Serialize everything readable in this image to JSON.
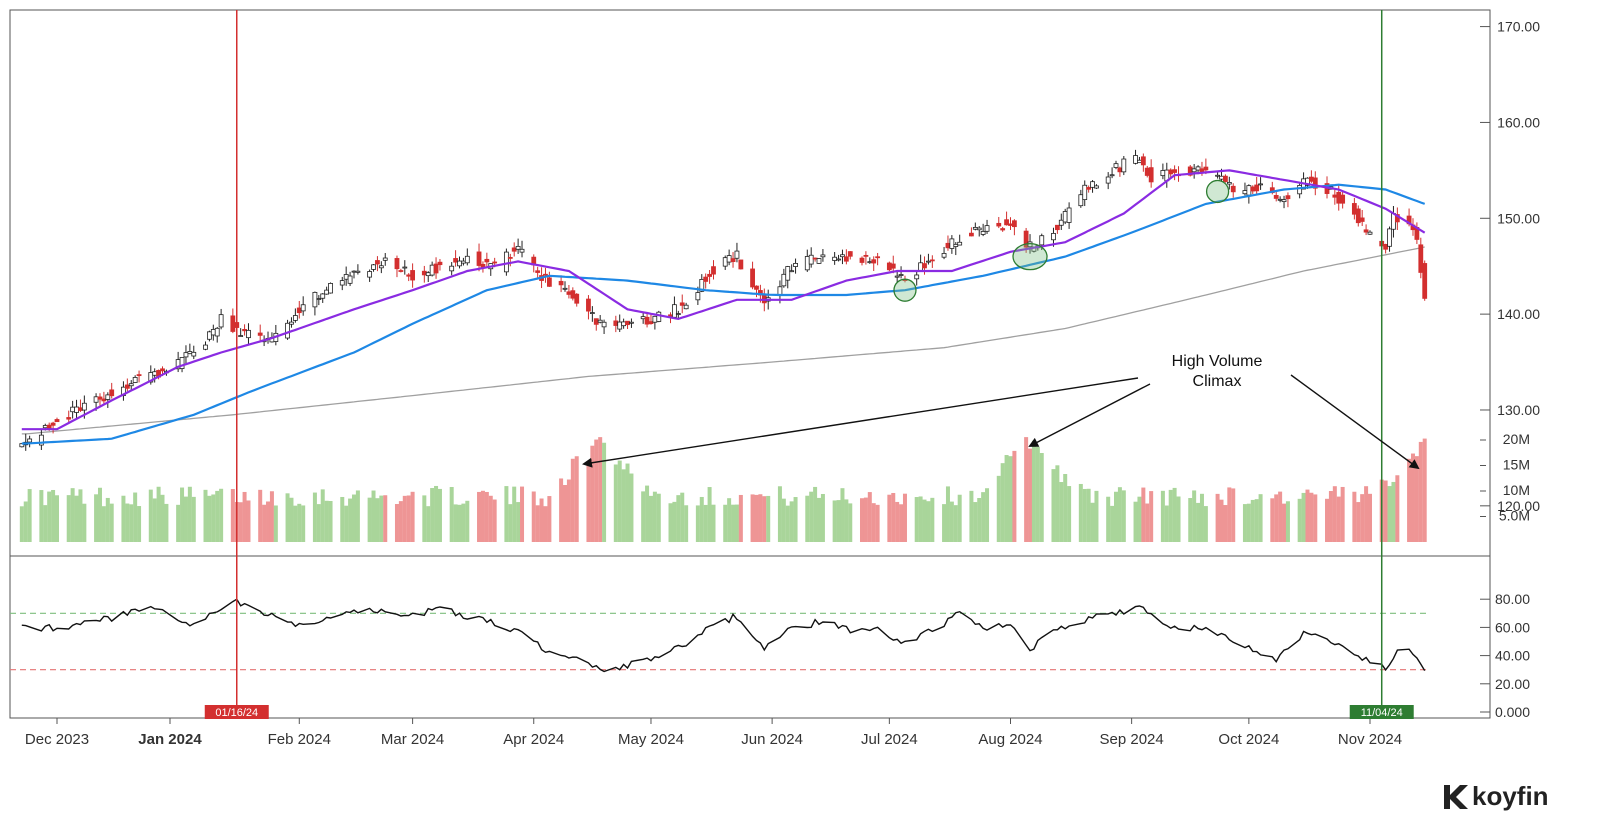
{
  "brand": {
    "name": "koyfin",
    "icon": "koyfin-k-icon"
  },
  "colors": {
    "up": "#ffffff",
    "down": "#d32f2f",
    "vol_up": "#a9d59a",
    "vol_down": "#ee9595",
    "ma_fast": "#8a2be2",
    "ma_mid": "#1e88e5",
    "ma_slow": "#a0a0a0",
    "rsi": "#111111",
    "rsi_upper": "#7fbf7f",
    "rsi_lower": "#e57373",
    "vline_red": "#d32f2f",
    "vline_green": "#2e7d32"
  },
  "annotation": {
    "line1": "High Volume",
    "line2": "Climax"
  },
  "markers": {
    "red_date": "01/16/24",
    "green_date": "11/04/24"
  },
  "chart_data": [
    {
      "type": "candlestick",
      "price_axis": {
        "ticks": [
          "120.00",
          "130.00",
          "140.00",
          "150.00",
          "160.00",
          "170.00"
        ],
        "range": [
          118,
          171
        ]
      },
      "x_labels": [
        "Dec 2023",
        "Jan 2024",
        "Feb 2024",
        "Mar 2024",
        "Apr 2024",
        "May 2024",
        "Jun 2024",
        "Jul 2024",
        "Aug 2024",
        "Sep 2024",
        "Oct 2024",
        "Nov 2024"
      ],
      "x_label_bold": "Jan 2024",
      "price_anchors": [
        [
          "2023-11-23",
          126.5
        ],
        [
          "2023-12-01",
          129
        ],
        [
          "2023-12-12",
          131
        ],
        [
          "2023-12-20",
          133
        ],
        [
          "2023-12-29",
          134
        ],
        [
          "2024-01-08",
          137
        ],
        [
          "2024-01-12",
          139.5
        ],
        [
          "2024-01-17",
          138
        ],
        [
          "2024-01-25",
          137.5
        ],
        [
          "2024-02-02",
          141
        ],
        [
          "2024-02-12",
          143.5
        ],
        [
          "2024-02-22",
          145.5
        ],
        [
          "2024-03-01",
          144
        ],
        [
          "2024-03-08",
          145
        ],
        [
          "2024-03-15",
          146
        ],
        [
          "2024-03-22",
          145
        ],
        [
          "2024-03-28",
          147
        ],
        [
          "2024-04-02",
          144
        ],
        [
          "2024-04-10",
          142
        ],
        [
          "2024-04-18",
          139
        ],
        [
          "2024-04-25",
          139
        ],
        [
          "2024-05-02",
          139.5
        ],
        [
          "2024-05-10",
          141
        ],
        [
          "2024-05-16",
          144.5
        ],
        [
          "2024-05-23",
          146
        ],
        [
          "2024-05-30",
          141
        ],
        [
          "2024-06-06",
          145
        ],
        [
          "2024-06-14",
          146
        ],
        [
          "2024-06-21",
          146
        ],
        [
          "2024-06-28",
          145.5
        ],
        [
          "2024-07-05",
          143.5
        ],
        [
          "2024-07-12",
          146
        ],
        [
          "2024-07-19",
          148
        ],
        [
          "2024-07-26",
          149
        ],
        [
          "2024-08-01",
          149.5
        ],
        [
          "2024-08-06",
          147
        ],
        [
          "2024-08-13",
          149
        ],
        [
          "2024-08-20",
          153
        ],
        [
          "2024-08-27",
          155
        ],
        [
          "2024-09-03",
          156.5
        ],
        [
          "2024-09-06",
          154
        ],
        [
          "2024-09-13",
          155
        ],
        [
          "2024-09-20",
          155
        ],
        [
          "2024-09-27",
          153
        ],
        [
          "2024-10-04",
          153
        ],
        [
          "2024-10-10",
          152
        ],
        [
          "2024-10-15",
          154
        ],
        [
          "2024-10-22",
          153
        ],
        [
          "2024-10-29",
          150
        ],
        [
          "2024-11-01",
          148
        ],
        [
          "2024-11-05",
          147
        ],
        [
          "2024-11-07",
          150
        ],
        [
          "2024-11-11",
          149.5
        ],
        [
          "2024-11-13",
          147.5
        ],
        [
          "2024-11-15",
          142
        ]
      ],
      "ma_fast_anchors": [
        [
          "2023-11-23",
          128
        ],
        [
          "2023-12-01",
          128
        ],
        [
          "2023-12-15",
          131
        ],
        [
          "2024-01-01",
          134.5
        ],
        [
          "2024-01-12",
          136
        ],
        [
          "2024-01-25",
          137.5
        ],
        [
          "2024-02-15",
          140.5
        ],
        [
          "2024-03-01",
          142.5
        ],
        [
          "2024-03-15",
          144.5
        ],
        [
          "2024-03-28",
          145.5
        ],
        [
          "2024-04-10",
          144.5
        ],
        [
          "2024-04-25",
          140.5
        ],
        [
          "2024-05-08",
          139.5
        ],
        [
          "2024-05-23",
          141.5
        ],
        [
          "2024-06-06",
          141.5
        ],
        [
          "2024-06-20",
          143.5
        ],
        [
          "2024-07-03",
          144.5
        ],
        [
          "2024-07-17",
          144.5
        ],
        [
          "2024-08-01",
          146.5
        ],
        [
          "2024-08-15",
          147.5
        ],
        [
          "2024-08-30",
          150.5
        ],
        [
          "2024-09-12",
          154.5
        ],
        [
          "2024-09-26",
          155
        ],
        [
          "2024-10-10",
          154
        ],
        [
          "2024-10-24",
          153
        ],
        [
          "2024-11-05",
          151
        ],
        [
          "2024-11-15",
          148.5
        ]
      ],
      "ma_mid_anchors": [
        [
          "2023-11-23",
          126.5
        ],
        [
          "2023-12-15",
          127
        ],
        [
          "2024-01-05",
          129.5
        ],
        [
          "2024-01-20",
          132
        ],
        [
          "2024-02-15",
          136
        ],
        [
          "2024-03-01",
          139
        ],
        [
          "2024-03-20",
          142.5
        ],
        [
          "2024-04-05",
          144
        ],
        [
          "2024-04-25",
          143.5
        ],
        [
          "2024-05-15",
          142.5
        ],
        [
          "2024-06-01",
          142
        ],
        [
          "2024-06-20",
          142
        ],
        [
          "2024-07-05",
          142.5
        ],
        [
          "2024-07-25",
          144
        ],
        [
          "2024-08-15",
          146
        ],
        [
          "2024-09-01",
          148.5
        ],
        [
          "2024-09-20",
          151.5
        ],
        [
          "2024-10-10",
          153
        ],
        [
          "2024-10-24",
          153.5
        ],
        [
          "2024-11-05",
          153
        ],
        [
          "2024-11-15",
          151.5
        ]
      ],
      "ma_slow_anchors": [
        [
          "2023-11-23",
          127.5
        ],
        [
          "2024-01-15",
          129.5
        ],
        [
          "2024-03-01",
          131.5
        ],
        [
          "2024-04-15",
          133.5
        ],
        [
          "2024-06-01",
          135
        ],
        [
          "2024-07-15",
          136.5
        ],
        [
          "2024-08-15",
          138.5
        ],
        [
          "2024-09-15",
          141.5
        ],
        [
          "2024-10-15",
          144.5
        ],
        [
          "2024-11-15",
          147
        ]
      ],
      "circles": [
        [
          "2024-07-05",
          142.5
        ],
        [
          "2024-08-06",
          146
        ],
        [
          "2024-09-23",
          152.8
        ]
      ]
    },
    {
      "type": "bar",
      "name_axis": "volume",
      "ticks": [
        "5.0M",
        "10M",
        "15M",
        "20M"
      ],
      "range": [
        0,
        20
      ],
      "high_volume_dates": [
        "2024-04-18",
        "2024-08-06",
        "2024-11-15"
      ]
    },
    {
      "type": "line",
      "ticks": [
        "0.000",
        "20.00",
        "40.00",
        "60.00",
        "80.00"
      ],
      "range": [
        0,
        100
      ],
      "upper_level": 70,
      "lower_level": 30,
      "anchors": [
        [
          "2023-11-23",
          60
        ],
        [
          "2023-12-01",
          60
        ],
        [
          "2023-12-12",
          65
        ],
        [
          "2023-12-20",
          70
        ],
        [
          "2023-12-28",
          74
        ],
        [
          "2024-01-04",
          60
        ],
        [
          "2024-01-10",
          70
        ],
        [
          "2024-01-16",
          78
        ],
        [
          "2024-01-25",
          68
        ],
        [
          "2024-02-02",
          60
        ],
        [
          "2024-02-12",
          70
        ],
        [
          "2024-02-22",
          72
        ],
        [
          "2024-03-01",
          68
        ],
        [
          "2024-03-08",
          74
        ],
        [
          "2024-03-15",
          68
        ],
        [
          "2024-03-22",
          63
        ],
        [
          "2024-03-29",
          57
        ],
        [
          "2024-04-03",
          45
        ],
        [
          "2024-04-10",
          40
        ],
        [
          "2024-04-18",
          30
        ],
        [
          "2024-04-25",
          33
        ],
        [
          "2024-05-02",
          38
        ],
        [
          "2024-05-10",
          48
        ],
        [
          "2024-05-16",
          60
        ],
        [
          "2024-05-23",
          68
        ],
        [
          "2024-05-30",
          44
        ],
        [
          "2024-06-06",
          60
        ],
        [
          "2024-06-14",
          64
        ],
        [
          "2024-06-21",
          58
        ],
        [
          "2024-06-28",
          60
        ],
        [
          "2024-07-05",
          48
        ],
        [
          "2024-07-12",
          58
        ],
        [
          "2024-07-19",
          70
        ],
        [
          "2024-07-26",
          60
        ],
        [
          "2024-08-01",
          63
        ],
        [
          "2024-08-06",
          45
        ],
        [
          "2024-08-13",
          58
        ],
        [
          "2024-08-20",
          65
        ],
        [
          "2024-08-27",
          70
        ],
        [
          "2024-09-03",
          74
        ],
        [
          "2024-09-10",
          60
        ],
        [
          "2024-09-17",
          60
        ],
        [
          "2024-09-24",
          55
        ],
        [
          "2024-10-01",
          45
        ],
        [
          "2024-10-08",
          38
        ],
        [
          "2024-10-15",
          55
        ],
        [
          "2024-10-22",
          50
        ],
        [
          "2024-10-29",
          40
        ],
        [
          "2024-11-05",
          30
        ],
        [
          "2024-11-10",
          50
        ],
        [
          "2024-11-15",
          27
        ]
      ]
    }
  ]
}
